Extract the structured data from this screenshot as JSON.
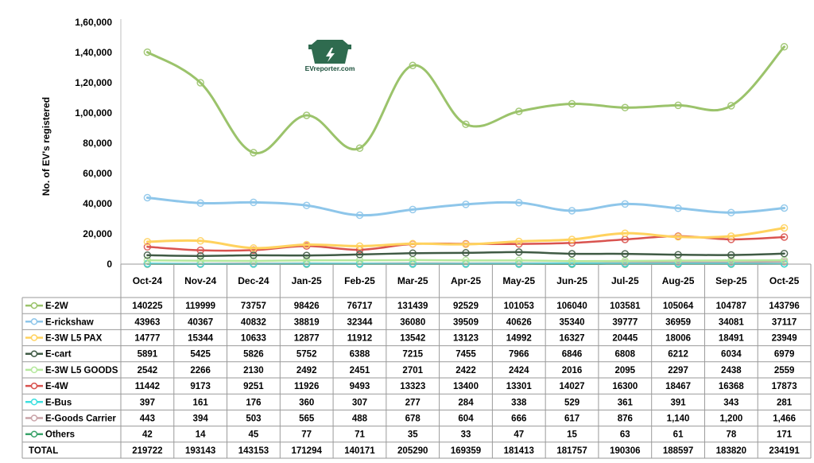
{
  "logo": {
    "text": "EVreporter.com",
    "colors": {
      "primary": "#2f6b4f"
    }
  },
  "chart_data": {
    "type": "line",
    "title": "",
    "xlabel": "",
    "ylabel": "No. of EV's registered",
    "ylim": [
      0,
      160000
    ],
    "yticks": [
      0,
      20000,
      40000,
      60000,
      80000,
      100000,
      120000,
      140000,
      160000
    ],
    "ytick_labels": [
      "0",
      "20,000",
      "40,000",
      "60,000",
      "80,000",
      "1,00,000",
      "1,20,000",
      "1,40,000",
      "1,60,000"
    ],
    "categories": [
      "Oct-24",
      "Nov-24",
      "Dec-24",
      "Jan-25",
      "Feb-25",
      "Mar-25",
      "Apr-25",
      "May-25",
      "Jun-25",
      "Jul-25",
      "Aug-25",
      "Sep-25",
      "Oct-25"
    ],
    "series": [
      {
        "name": "E-2W",
        "color": "#9bc36b",
        "stroke_width": 3,
        "values": [
          140225,
          119999,
          73757,
          98426,
          76717,
          131439,
          92529,
          101053,
          106040,
          103581,
          105064,
          104787,
          143796
        ],
        "labels": [
          "140225",
          "119999",
          "73757",
          "98426",
          "76717",
          "131439",
          "92529",
          "101053",
          "106040",
          "103581",
          "105064",
          "104787",
          "143796"
        ]
      },
      {
        "name": "E-rickshaw",
        "color": "#8ec6ea",
        "stroke_width": 3,
        "values": [
          43963,
          40367,
          40832,
          38819,
          32344,
          36080,
          39509,
          40626,
          35340,
          39777,
          36959,
          34081,
          37117
        ],
        "labels": [
          "43963",
          "40367",
          "40832",
          "38819",
          "32344",
          "36080",
          "39509",
          "40626",
          "35340",
          "39777",
          "36959",
          "34081",
          "37117"
        ]
      },
      {
        "name": "E-3W L5 PAX",
        "color": "#ffd25e",
        "stroke_width": 3,
        "values": [
          14777,
          15344,
          10633,
          12877,
          11912,
          13542,
          13123,
          14992,
          16327,
          20445,
          18006,
          18491,
          23949
        ],
        "labels": [
          "14777",
          "15344",
          "10633",
          "12877",
          "11912",
          "13542",
          "13123",
          "14992",
          "16327",
          "20445",
          "18006",
          "18491",
          "23949"
        ]
      },
      {
        "name": "E-cart",
        "color": "#3f5a44",
        "stroke_width": 2.5,
        "values": [
          5891,
          5425,
          5826,
          5752,
          6388,
          7215,
          7455,
          7966,
          6846,
          6808,
          6212,
          6034,
          6979
        ],
        "labels": [
          "5891",
          "5425",
          "5826",
          "5752",
          "6388",
          "7215",
          "7455",
          "7966",
          "6846",
          "6808",
          "6212",
          "6034",
          "6979"
        ]
      },
      {
        "name": "E-3W L5 GOODS",
        "color": "#b4e89c",
        "stroke_width": 2.5,
        "values": [
          2542,
          2266,
          2130,
          2492,
          2451,
          2701,
          2422,
          2424,
          2016,
          2095,
          2297,
          2438,
          2559
        ],
        "labels": [
          "2542",
          "2266",
          "2130",
          "2492",
          "2451",
          "2701",
          "2422",
          "2424",
          "2016",
          "2095",
          "2297",
          "2438",
          "2559"
        ]
      },
      {
        "name": "E-4W",
        "color": "#d9534f",
        "stroke_width": 2.5,
        "values": [
          11442,
          9173,
          9251,
          11926,
          9493,
          13323,
          13400,
          13301,
          14027,
          16300,
          18467,
          16368,
          17873
        ],
        "labels": [
          "11442",
          "9173",
          "9251",
          "11926",
          "9493",
          "13323",
          "13400",
          "13301",
          "14027",
          "16300",
          "18467",
          "16368",
          "17873"
        ]
      },
      {
        "name": "E-Bus",
        "color": "#3ee0e0",
        "stroke_width": 2,
        "values": [
          397,
          161,
          176,
          360,
          307,
          277,
          284,
          338,
          529,
          361,
          391,
          343,
          281
        ],
        "labels": [
          "397",
          "161",
          "176",
          "360",
          "307",
          "277",
          "284",
          "338",
          "529",
          "361",
          "391",
          "343",
          "281"
        ]
      },
      {
        "name": "E-Goods Carrier",
        "color": "#c9a3a8",
        "stroke_width": 2,
        "values": [
          443,
          394,
          503,
          565,
          488,
          678,
          604,
          666,
          617,
          876,
          1140,
          1200,
          1466
        ],
        "labels": [
          "443",
          "394",
          "503",
          "565",
          "488",
          "678",
          "604",
          "666",
          "617",
          "876",
          "1,140",
          "1,200",
          "1,466"
        ]
      },
      {
        "name": "Others",
        "color": "#3aa36a",
        "stroke_width": 2,
        "values": [
          42,
          14,
          45,
          77,
          71,
          35,
          33,
          47,
          15,
          63,
          61,
          78,
          171
        ],
        "labels": [
          "42",
          "14",
          "45",
          "77",
          "71",
          "35",
          "33",
          "47",
          "15",
          "63",
          "61",
          "78",
          "171"
        ]
      }
    ],
    "total": {
      "name": "TOTAL",
      "values": [
        219722,
        193143,
        143153,
        171294,
        140171,
        205290,
        169359,
        181413,
        181757,
        190306,
        188597,
        183820,
        234191
      ],
      "labels": [
        "219722",
        "193143",
        "143153",
        "171294",
        "140171",
        "205290",
        "169359",
        "181413",
        "181757",
        "190306",
        "188597",
        "183820",
        "234191"
      ]
    }
  }
}
